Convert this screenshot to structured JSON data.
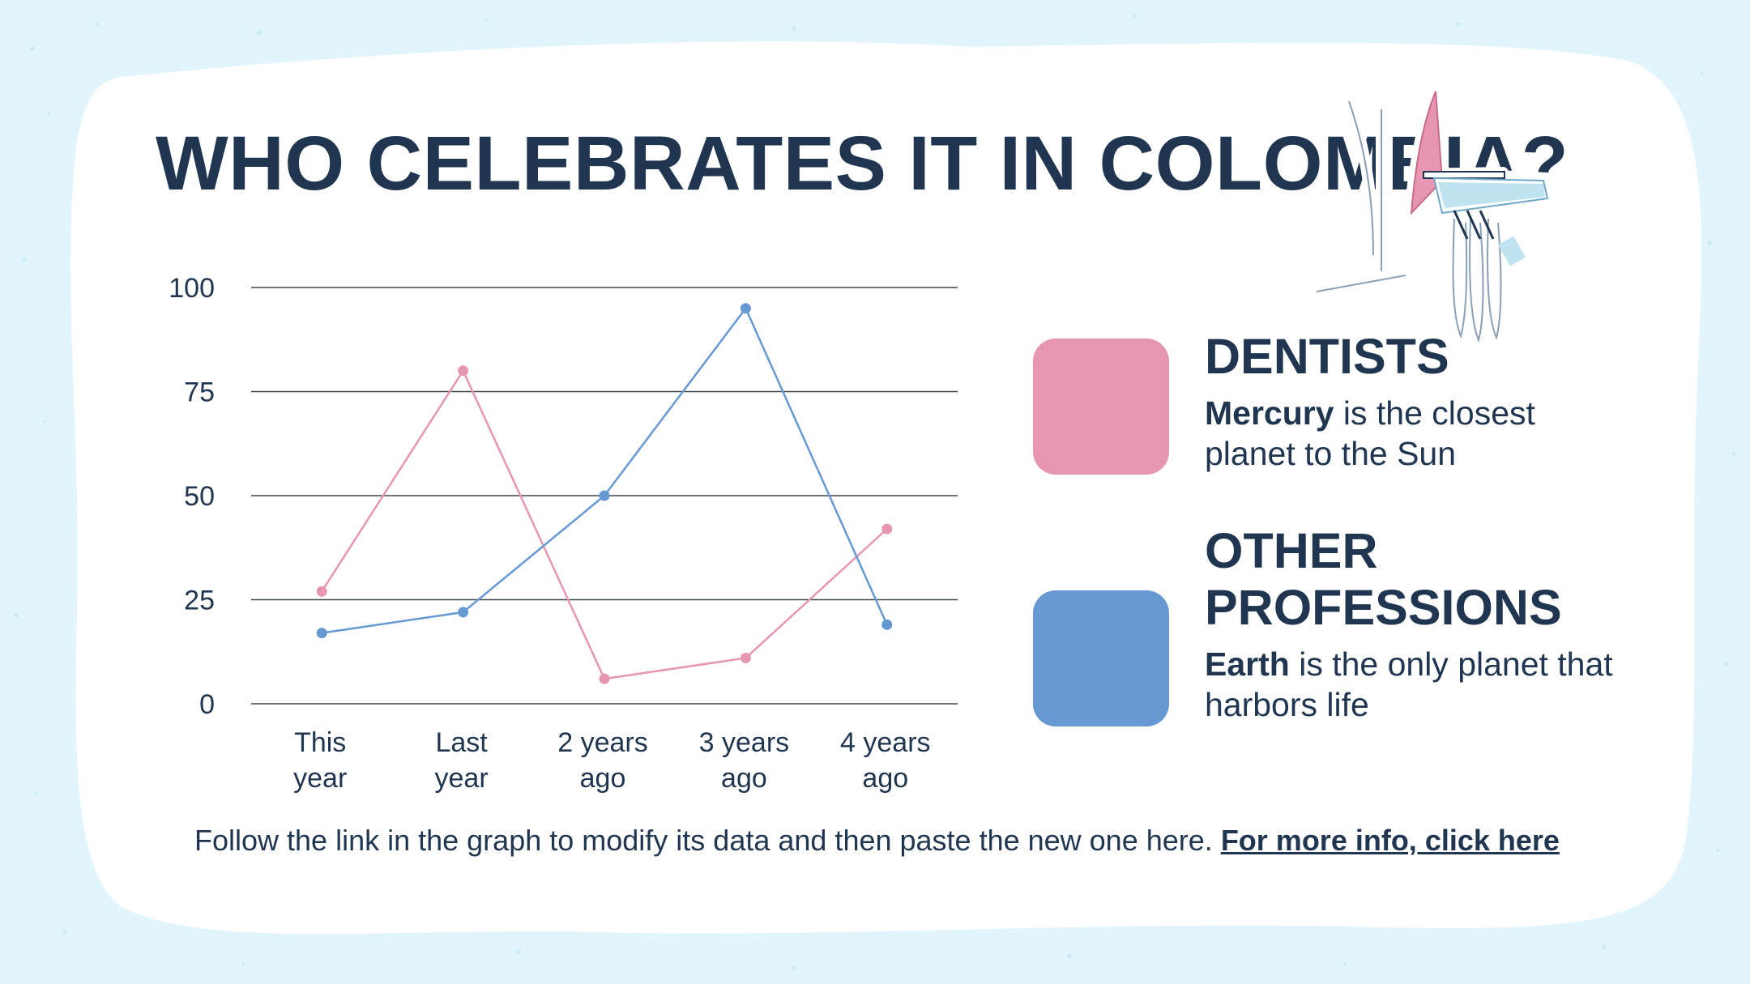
{
  "slide": {
    "title": "WHO CELEBRATES IT IN COLOMBIA?"
  },
  "legend": [
    {
      "title": "DENTISTS",
      "bold_word": "Mercury",
      "text": " is the closest planet to the Sun",
      "color": "#e796b2"
    },
    {
      "title": "OTHER PROFESSIONS",
      "bold_word": "Earth",
      "text": " is the only planet that harbors life",
      "color": "#6699d2"
    }
  ],
  "footer": {
    "text": "Follow the link in the graph to modify its data and then paste the new one here.",
    "link_label": "For more info, click here"
  },
  "illustration": {
    "icon": "dental-chair-icon"
  },
  "chart_data": {
    "type": "line",
    "categories": [
      [
        "This",
        "year"
      ],
      [
        "Last",
        "year"
      ],
      [
        "2 years",
        "ago"
      ],
      [
        "3 years",
        "ago"
      ],
      [
        "4 years",
        "ago"
      ]
    ],
    "series": [
      {
        "name": "DENTISTS",
        "values": [
          27,
          80,
          6,
          11,
          42
        ],
        "color": "#e796b2"
      },
      {
        "name": "OTHER PROFESSIONS",
        "values": [
          17,
          22,
          50,
          95,
          19
        ],
        "color": "#6699d2"
      }
    ],
    "yticks": [
      0,
      25,
      50,
      75,
      100
    ],
    "ylim": [
      0,
      100
    ],
    "grid": true,
    "title": "",
    "xlabel": "",
    "ylabel": ""
  }
}
